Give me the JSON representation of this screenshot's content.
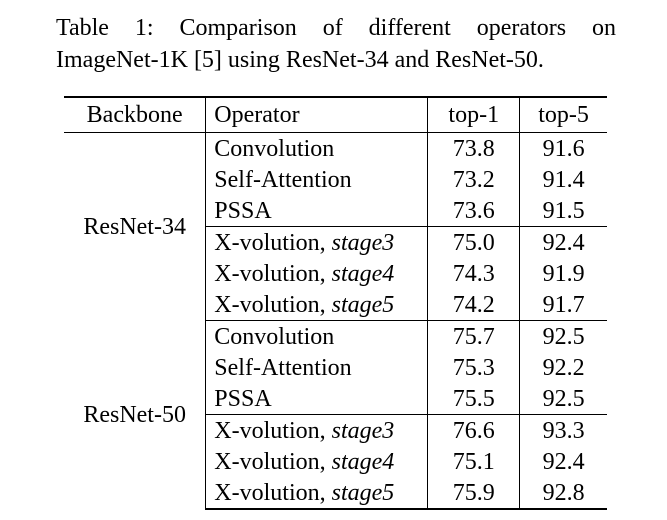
{
  "caption": {
    "line1": "Table 1:  Comparison of different operators on",
    "line2": "ImageNet-1K [5] using ResNet-34 and ResNet-50."
  },
  "header": {
    "backbone": "Backbone",
    "operator": "Operator",
    "top1": "top-1",
    "top5": "top-5"
  },
  "groups": [
    {
      "backbone": "ResNet-34",
      "rows": [
        {
          "operator": "Convolution",
          "stage": "",
          "top1": "73.8",
          "top5": "91.6",
          "bold": false
        },
        {
          "operator": "Self-Attention",
          "stage": "",
          "top1": "73.2",
          "top5": "91.4",
          "bold": false
        },
        {
          "operator": "PSSA",
          "stage": "",
          "top1": "73.6",
          "top5": "91.5",
          "bold": false
        },
        {
          "operator": "X-volution, ",
          "stage": "stage3",
          "top1": "75.0",
          "top5": "92.4",
          "bold": true
        },
        {
          "operator": "X-volution, ",
          "stage": "stage4",
          "top1": "74.3",
          "top5": "91.9",
          "bold": false
        },
        {
          "operator": "X-volution, ",
          "stage": "stage5",
          "top1": "74.2",
          "top5": "91.7",
          "bold": false
        }
      ]
    },
    {
      "backbone": "ResNet-50",
      "rows": [
        {
          "operator": "Convolution",
          "stage": "",
          "top1": "75.7",
          "top5": "92.5",
          "bold": false
        },
        {
          "operator": "Self-Attention",
          "stage": "",
          "top1": "75.3",
          "top5": "92.2",
          "bold": false
        },
        {
          "operator": "PSSA",
          "stage": "",
          "top1": "75.5",
          "top5": "92.5",
          "bold": false
        },
        {
          "operator": "X-volution, ",
          "stage": "stage3",
          "top1": "76.6",
          "top5": "93.3",
          "bold": true
        },
        {
          "operator": "X-volution, ",
          "stage": "stage4",
          "top1": "75.1",
          "top5": "92.4",
          "bold": false
        },
        {
          "operator": "X-volution, ",
          "stage": "stage5",
          "top1": "75.9",
          "top5": "92.8",
          "bold": false
        }
      ]
    }
  ]
}
